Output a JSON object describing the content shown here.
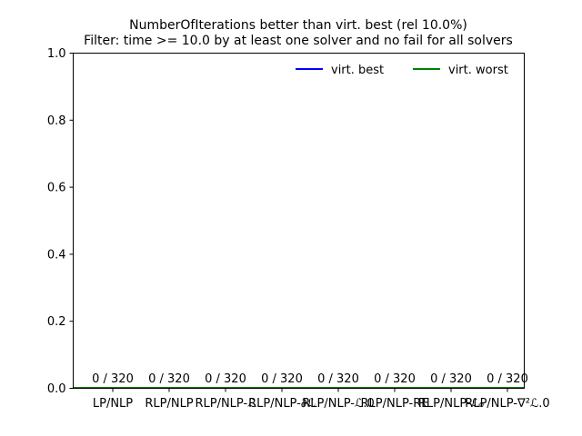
{
  "chart_data": {
    "type": "bar",
    "title": "NumberOfIterations better than virt. best (rel 10.0%)",
    "subtitle": "Filter: time >= 10.0 by at least one solver and no fail for all solvers",
    "categories": [
      "LP/NLP",
      "RLP/NLP",
      "RLP/NLP-ℒ",
      "RLP/NLP-∂ℒ",
      "RLP/NLP-ℒ.0",
      "RLP/NLP-RE",
      "RLP/NLP-ℒ₀",
      "RLP/NLP-∇²ℒ.0"
    ],
    "values": [
      0,
      0,
      0,
      0,
      0,
      0,
      0,
      0
    ],
    "data_labels": [
      "0 / 320",
      "0 / 320",
      "0 / 320",
      "0 / 320",
      "0 / 320",
      "0 / 320",
      "0 / 320",
      "0 / 320"
    ],
    "ylim": [
      0,
      1.0
    ],
    "yticks": [
      "0.0",
      "0.2",
      "0.4",
      "0.6",
      "0.8",
      "1.0"
    ],
    "series": [
      {
        "name": "virt. best",
        "color": "#0000ff",
        "values": [
          0,
          0,
          0,
          0,
          0,
          0,
          0,
          0
        ]
      },
      {
        "name": "virt. worst",
        "color": "#008000",
        "values": [
          0,
          0,
          0,
          0,
          0,
          0,
          0,
          0
        ]
      }
    ],
    "legend": "top-right",
    "grid": false
  }
}
